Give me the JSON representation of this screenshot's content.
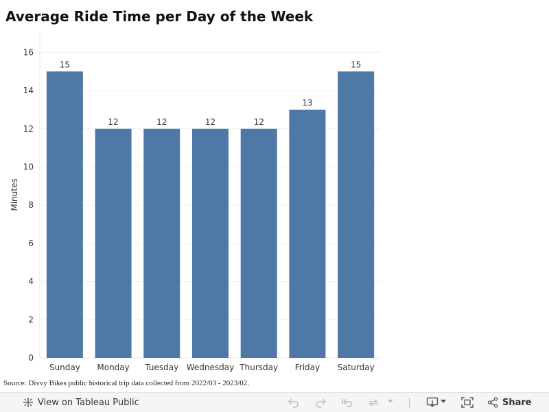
{
  "chart_data": {
    "type": "bar",
    "title": "Average Ride Time per Day of the Week",
    "xlabel": "",
    "ylabel": "Minutes",
    "categories": [
      "Sunday",
      "Monday",
      "Tuesday",
      "Wednesday",
      "Thursday",
      "Friday",
      "Saturday"
    ],
    "values": [
      15,
      12,
      12,
      12,
      12,
      13,
      15
    ],
    "data_labels": [
      "15",
      "12",
      "12",
      "12",
      "12",
      "13",
      "15"
    ],
    "ylim": [
      0,
      16
    ],
    "yticks": [
      0,
      2,
      4,
      6,
      8,
      10,
      12,
      14,
      16
    ],
    "grid": true,
    "bar_color": "#4e79a7"
  },
  "source": "Source: Divvy Bikes public historical trip data collected from 2022/03 - 2023/02.",
  "toolbar": {
    "view_label": "View on Tableau Public",
    "share_label": "Share",
    "icons": [
      "tableau-logo-icon",
      "undo-icon",
      "redo-icon",
      "revert-icon",
      "refresh-icon",
      "pause-icon",
      "download-icon",
      "fullscreen-icon",
      "share-icon"
    ]
  }
}
